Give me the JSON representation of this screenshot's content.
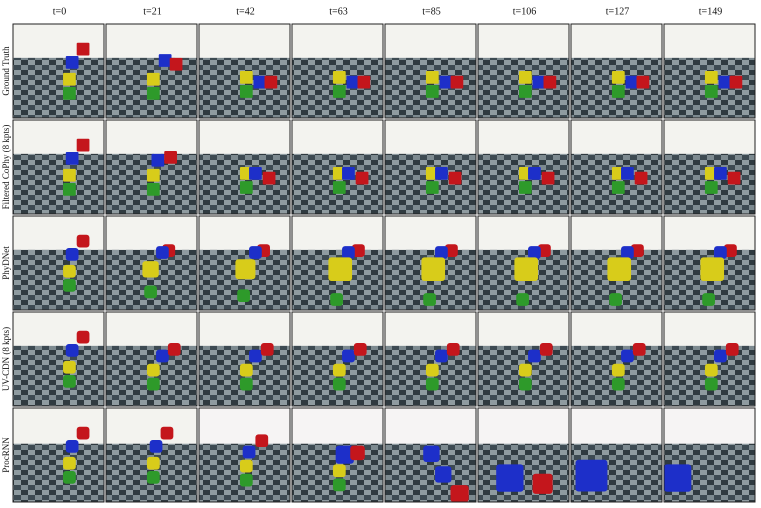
{
  "columns": [
    "t=0",
    "t=21",
    "t=42",
    "t=63",
    "t=85",
    "t=106",
    "t=127",
    "t=149"
  ],
  "rows": [
    "Ground Truth",
    "Filtered CoPhy (8 kpts)",
    "PhyDNet",
    "UV-CDN (8 kpts)",
    "ProcRNN"
  ]
}
